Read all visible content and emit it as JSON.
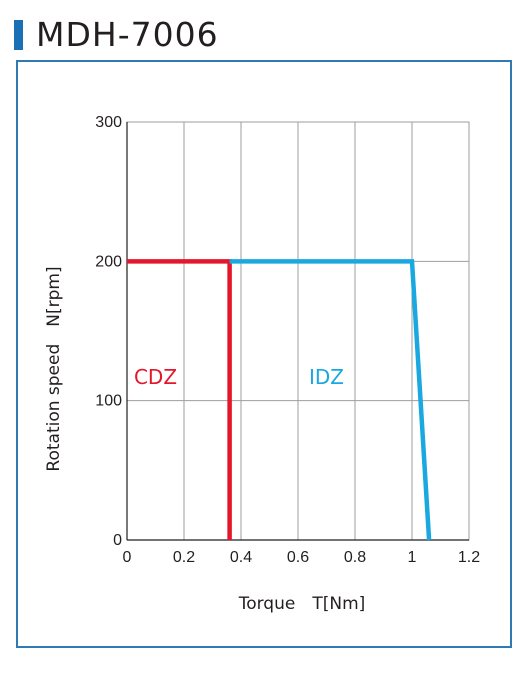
{
  "header": {
    "title": "MDH-7006",
    "accent_color": "#1a6fb5"
  },
  "panel_border_color": "#2f79b5",
  "chart_data": {
    "type": "line",
    "xlabel": "Torque　T[Nm]",
    "ylabel": "Rotation speed　N[rpm]",
    "xlim": [
      0,
      1.2
    ],
    "ylim": [
      0,
      300
    ],
    "x_ticks": [
      0,
      0.2,
      0.4,
      0.6,
      0.8,
      1,
      1.2
    ],
    "x_tick_labels": [
      "0",
      "0.2",
      "0.4",
      "0.6",
      "0.8",
      "1",
      "1.2"
    ],
    "y_ticks": [
      0,
      100,
      200,
      300
    ],
    "y_tick_labels": [
      "0",
      "100",
      "200",
      "300"
    ],
    "grid": true,
    "series": [
      {
        "name": "CDZ",
        "color": "#e4162b",
        "points": [
          [
            0,
            200
          ],
          [
            0.36,
            200
          ],
          [
            0.36,
            0
          ]
        ],
        "label_at": [
          0.1,
          112
        ]
      },
      {
        "name": "IDZ",
        "color": "#19a9e0",
        "points": [
          [
            0.36,
            200
          ],
          [
            1.0,
            200
          ],
          [
            1.06,
            0
          ]
        ],
        "label_at": [
          0.7,
          112
        ]
      }
    ]
  }
}
